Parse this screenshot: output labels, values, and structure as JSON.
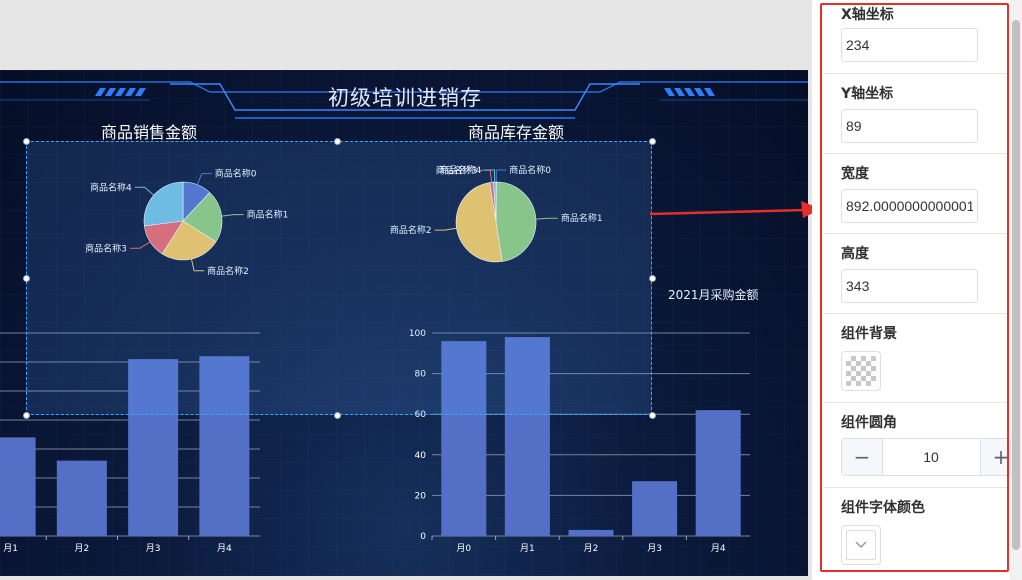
{
  "dashboard": {
    "title": "初级培训进销存",
    "charts": {
      "sales": {
        "title": "商品销售金额"
      },
      "inventory": {
        "title": "商品库存金额"
      },
      "purchase": {
        "title": "2021月采购金额"
      }
    }
  },
  "chart_data": [
    {
      "type": "pie",
      "title": "商品销售金额",
      "labels": [
        "商品名称0",
        "商品名称1",
        "商品名称2",
        "商品名称3",
        "商品名称4"
      ],
      "values": [
        12,
        22,
        25,
        14,
        27
      ],
      "colors": [
        "#5470c6",
        "#91cc75",
        "#fac858",
        "#ee6666",
        "#73c0de"
      ]
    },
    {
      "type": "pie",
      "title": "商品库存金额",
      "labels": [
        "商品名称0",
        "商品名称1",
        "商品名称2",
        "商品名称3",
        "商品名称4"
      ],
      "values": [
        0.2,
        47.3,
        50,
        1.5,
        1
      ],
      "colors": [
        "#5470c6",
        "#91cc75",
        "#fac858",
        "#ee6666",
        "#73c0de"
      ]
    },
    {
      "type": "bar",
      "title": "",
      "categories": [
        "月1",
        "月2",
        "月3",
        "月4"
      ],
      "values": [
        34,
        26,
        61,
        62
      ],
      "ylim": [
        0,
        70
      ],
      "grid": true,
      "color": "#5470c6"
    },
    {
      "type": "bar",
      "title": "2021月采购金额",
      "categories": [
        "月0",
        "月1",
        "月2",
        "月3",
        "月4"
      ],
      "values": [
        96,
        98,
        3,
        27,
        62
      ],
      "yticks": [
        0,
        20,
        40,
        60,
        80,
        100
      ],
      "ylim": [
        0,
        100
      ],
      "grid": true,
      "color": "#5470c6"
    }
  ],
  "panel": {
    "x": {
      "label": "X轴坐标",
      "value": "234"
    },
    "y": {
      "label": "Y轴坐标",
      "value": "89"
    },
    "width": {
      "label": "宽度",
      "value": "892.0000000000001"
    },
    "height": {
      "label": "高度",
      "value": "343"
    },
    "background": {
      "label": "组件背景",
      "color": "transparent"
    },
    "radius": {
      "label": "组件圆角",
      "value": "10",
      "minus": "−",
      "plus": "+"
    },
    "font_color": {
      "label": "组件字体颜色",
      "icon": "chevron-down-icon"
    }
  },
  "colors": {
    "accent_red": "#e62e2a",
    "selection": "#3fa4ff",
    "bar": "#5470c6"
  }
}
